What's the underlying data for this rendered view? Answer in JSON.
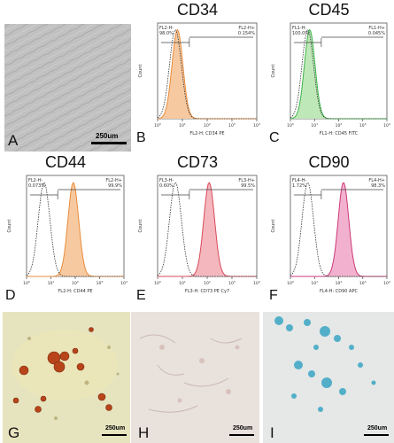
{
  "panels": {
    "A": {
      "label": "A",
      "scale": "250um"
    },
    "G": {
      "label": "G",
      "scale": "250um"
    },
    "H": {
      "label": "H",
      "scale": "250um"
    },
    "I": {
      "label": "I",
      "scale": "250um"
    }
  },
  "histograms": [
    {
      "id": "B",
      "title": "CD34",
      "gate_left": "FL2-H-",
      "gate_right": "FL2-H+",
      "pct_left": "98.0%",
      "pct_right": "0.154%",
      "xlabel": "FL2-H: CD34 PE",
      "ylabel": "Count",
      "color": "#e88c3c",
      "fill": "#f7c9a0",
      "mode": "single"
    },
    {
      "id": "C",
      "title": "CD45",
      "gate_left": "FL1-H-",
      "gate_right": "FL1-H+",
      "pct_left": "100.0%",
      "pct_right": "0.045%",
      "xlabel": "FL1-H: CD45 FITC",
      "ylabel": "Count",
      "color": "#3cb44a",
      "fill": "#bfe8b8",
      "mode": "single"
    },
    {
      "id": "D",
      "title": "CD44",
      "gate_left": "FL2-H-",
      "gate_right": "FL2-H+",
      "pct_left": "0.073%",
      "pct_right": "99.9%",
      "xlabel": "FL2-H: CD44 PE",
      "ylabel": "Count",
      "color": "#e88c3c",
      "fill": "#f7c9a0",
      "mode": "shift"
    },
    {
      "id": "E",
      "title": "CD73",
      "gate_left": "FL3-H-",
      "gate_right": "FL3-H+",
      "pct_left": "0.60%",
      "pct_right": "99.5%",
      "xlabel": "FL3-H: CD73 PE Cy7",
      "ylabel": "Count",
      "color": "#d94a5a",
      "fill": "#f4b7be",
      "mode": "shift"
    },
    {
      "id": "F",
      "title": "CD90",
      "gate_left": "FL4-H-",
      "gate_right": "FL4-H+",
      "pct_left": "1.72%",
      "pct_right": "98.3%",
      "xlabel": "FL4-H: CD90 APC",
      "ylabel": "Count",
      "color": "#cc3a78",
      "fill": "#f2b2cf",
      "mode": "shift"
    }
  ]
}
